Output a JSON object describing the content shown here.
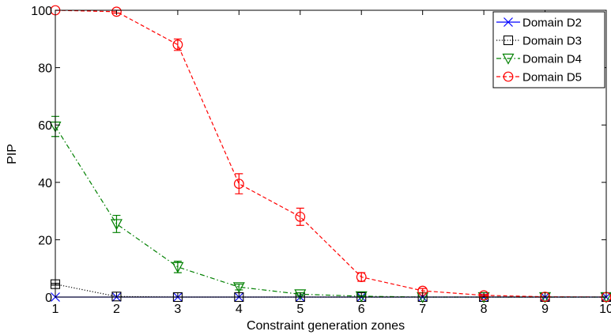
{
  "chart_data": {
    "type": "line",
    "title": "",
    "xlabel": "Constraint generation zones",
    "ylabel": "PIP",
    "xlim": [
      1,
      10
    ],
    "ylim": [
      0,
      100
    ],
    "x": [
      1,
      2,
      3,
      4,
      5,
      6,
      7,
      8,
      9,
      10
    ],
    "x_ticks": [
      "1",
      "2",
      "3",
      "4",
      "5",
      "6",
      "7",
      "8",
      "9",
      "10"
    ],
    "y_ticks": [
      "0",
      "20",
      "40",
      "60",
      "80",
      "100"
    ],
    "grid": false,
    "legend_position": "top-right",
    "series": [
      {
        "name": "Domain D2",
        "color": "#0000ff",
        "marker": "x",
        "line_style": "solid",
        "values": [
          0,
          0,
          0,
          0,
          0,
          0,
          0,
          0,
          0,
          0
        ],
        "errors": [
          0,
          0,
          0,
          0,
          0,
          0,
          0,
          0,
          0,
          0
        ]
      },
      {
        "name": "Domain D3",
        "color": "#000000",
        "marker": "square",
        "line_style": "dotted",
        "values": [
          4.5,
          0.2,
          0,
          0,
          0,
          0,
          0,
          0,
          0,
          0
        ],
        "errors": [
          0.3,
          0,
          0,
          0,
          0,
          0,
          0,
          0,
          0,
          0
        ]
      },
      {
        "name": "Domain D4",
        "color": "#008000",
        "marker": "triangle-down",
        "line_style": "dashdot",
        "values": [
          59.5,
          25.5,
          10.5,
          3.5,
          1,
          0.3,
          0,
          0,
          0,
          0
        ],
        "errors": [
          3.5,
          3,
          2,
          1,
          0.5,
          0.2,
          0,
          0,
          0,
          0
        ]
      },
      {
        "name": "Domain D5",
        "color": "#ff0000",
        "marker": "circle",
        "line_style": "dashed",
        "values": [
          100,
          99.5,
          88,
          39.5,
          28,
          7,
          2.2,
          0.6,
          0.1,
          0
        ],
        "errors": [
          0,
          0.5,
          2,
          3.5,
          3,
          1.5,
          0.8,
          0.3,
          0,
          0
        ]
      }
    ]
  }
}
